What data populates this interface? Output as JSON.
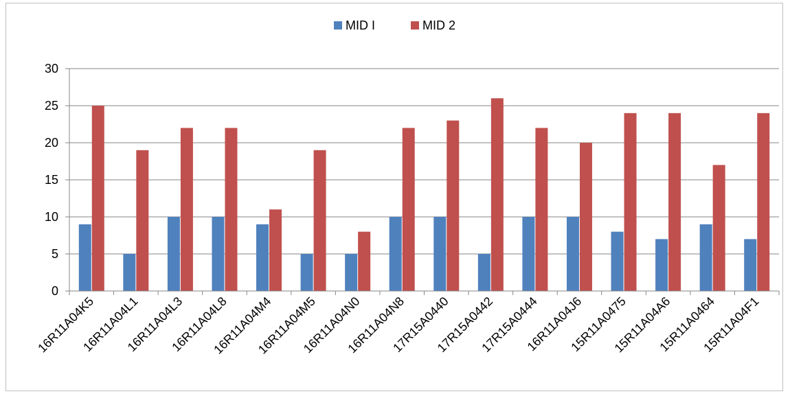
{
  "chart_data": {
    "type": "bar",
    "title": "",
    "xlabel": "",
    "ylabel": "",
    "ylim": [
      0,
      30
    ],
    "yticks": [
      0,
      5,
      10,
      15,
      20,
      25,
      30
    ],
    "grid": true,
    "legend_position": "top-center",
    "categories": [
      "16R11A04K5",
      "16R11A04L1",
      "16R11A04L3",
      "16R11A04L8",
      "16R11A04M4",
      "16R11A04M5",
      "16R11A04N0",
      "16R11A04N8",
      "17R15A0440",
      "17R15A0442",
      "17R15A0444",
      "16R11A04J6",
      "15R11A0475",
      "15R11A04A6",
      "15R11A0464",
      "15R11A04F1"
    ],
    "series": [
      {
        "name": "MID I",
        "color": "#4f81bd",
        "values": [
          9,
          5,
          10,
          10,
          9,
          5,
          5,
          10,
          10,
          5,
          10,
          10,
          8,
          7,
          9,
          7
        ]
      },
      {
        "name": "MID 2",
        "color": "#c0504d",
        "values": [
          25,
          19,
          22,
          22,
          11,
          19,
          8,
          22,
          23,
          26,
          22,
          20,
          24,
          24,
          17,
          24
        ]
      }
    ]
  }
}
